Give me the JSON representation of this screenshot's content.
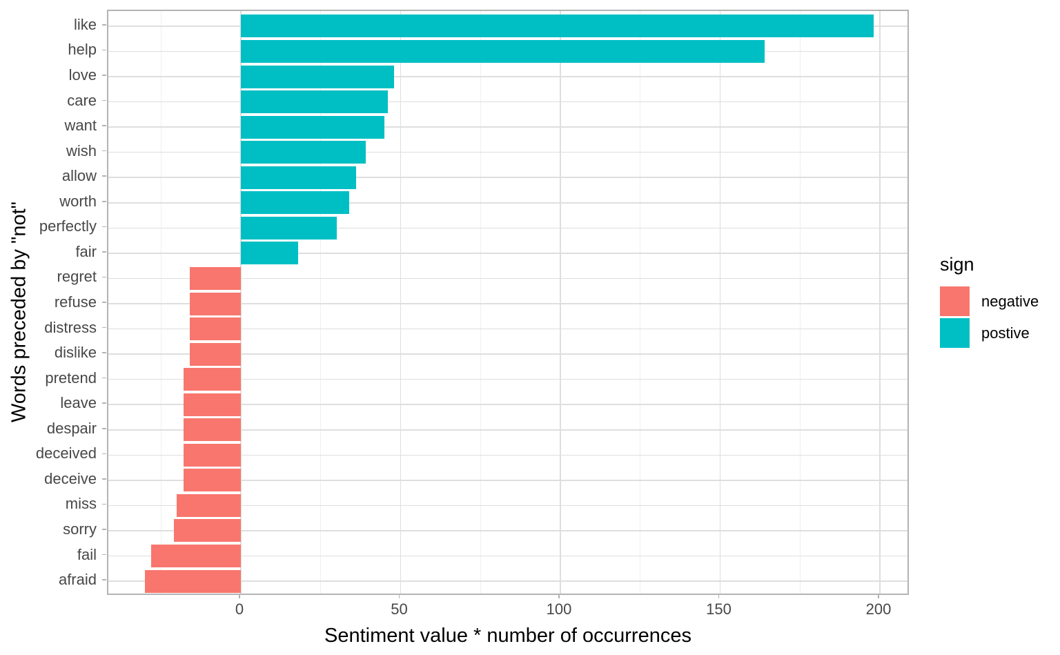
{
  "chart_data": {
    "type": "bar",
    "orientation": "horizontal",
    "title": "",
    "xlabel": "Sentiment value * number of occurrences",
    "ylabel": "Words preceded by \"not\"",
    "grid": true,
    "categories": [
      "like",
      "help",
      "love",
      "care",
      "want",
      "wish",
      "allow",
      "worth",
      "perfectly",
      "fair",
      "regret",
      "refuse",
      "distress",
      "dislike",
      "pretend",
      "leave",
      "despair",
      "deceived",
      "deceive",
      "miss",
      "sorry",
      "fail",
      "afraid"
    ],
    "values": [
      198,
      164,
      48,
      46,
      45,
      39,
      36,
      34,
      30,
      18,
      -16,
      -16,
      -16,
      -16,
      -18,
      -18,
      -18,
      -18,
      -18,
      -20,
      -21,
      -28,
      -30
    ],
    "signs": [
      "positive",
      "positive",
      "positive",
      "positive",
      "positive",
      "positive",
      "positive",
      "positive",
      "positive",
      "positive",
      "negative",
      "negative",
      "negative",
      "negative",
      "negative",
      "negative",
      "negative",
      "negative",
      "negative",
      "negative",
      "negative",
      "negative",
      "negative"
    ],
    "x_axis": {
      "major_ticks": [
        0,
        50,
        100,
        150,
        200
      ],
      "minor_ticks": [
        -25,
        25,
        75,
        125,
        175
      ],
      "range": [
        -41.5,
        209.5
      ]
    },
    "colors": {
      "positive": "#00BFC4",
      "negative": "#F8766D",
      "grid_major": "#dedede",
      "grid_minor": "#efefef",
      "panel_border": "#b3b3b3",
      "tick_text": "#474747"
    },
    "legend": {
      "title": "sign",
      "position": "right",
      "entries": [
        {
          "label": "negative",
          "sign": "negative",
          "color": "#F8766D"
        },
        {
          "label": "postive",
          "sign": "positive",
          "color": "#00BFC4"
        }
      ]
    }
  }
}
